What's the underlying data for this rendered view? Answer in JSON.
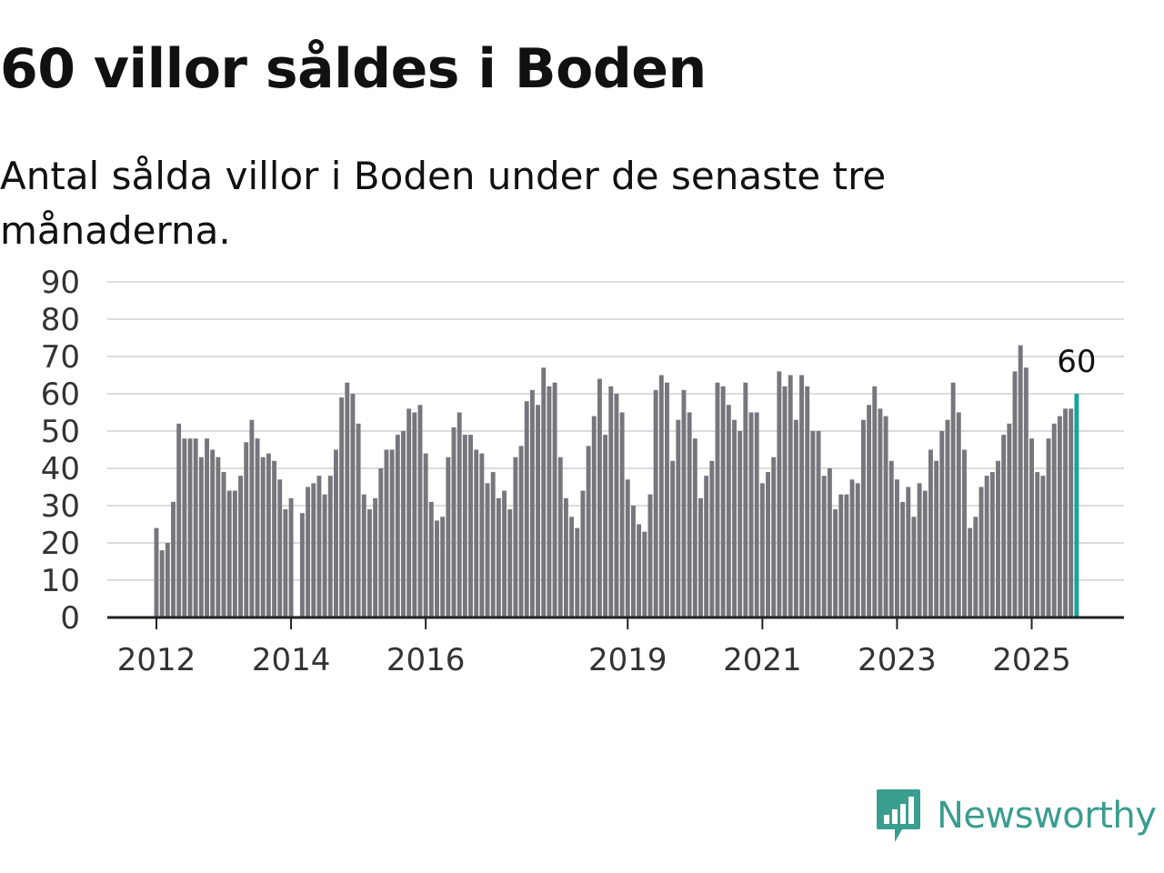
{
  "title": "60 villor såldes i Boden",
  "subtitle": "Antal sålda villor i Boden under de senaste tre månaderna.",
  "brand": {
    "name": "Newsworthy",
    "color": "#3a9e8f"
  },
  "chart_data": {
    "type": "bar",
    "ylim": [
      0,
      90
    ],
    "y_ticks": [
      0,
      10,
      20,
      30,
      40,
      50,
      60,
      70,
      80,
      90
    ],
    "x_tick_labels": [
      "2012",
      "2014",
      "2016",
      "2019",
      "2021",
      "2023",
      "2025"
    ],
    "grid": true,
    "bar_color": "#76767c",
    "highlight_color": "#1aa39a",
    "highlight_label": "60",
    "start": "2012-01",
    "series": [
      {
        "values": [
          24,
          18,
          20,
          31,
          52,
          48,
          48,
          48,
          43,
          48,
          45,
          43,
          39,
          34,
          34,
          38,
          47,
          53,
          48,
          43,
          44,
          42,
          37,
          29,
          32,
          0,
          28,
          35,
          36,
          38,
          33,
          38,
          45,
          59,
          63,
          60,
          52,
          33,
          29,
          32,
          40,
          45,
          45,
          49,
          50,
          56,
          55,
          57,
          44,
          31,
          26,
          27,
          43,
          51,
          55,
          49,
          49,
          45,
          44,
          36,
          39,
          32,
          34,
          29,
          43,
          46,
          58,
          61,
          57,
          67,
          62,
          63,
          43,
          32,
          27,
          24,
          34,
          46,
          54,
          64,
          49,
          62,
          60,
          55,
          37,
          30,
          25,
          23,
          33,
          61,
          65,
          63,
          42,
          53,
          61,
          55,
          48,
          32,
          38,
          42,
          63,
          62,
          57,
          53,
          50,
          63,
          55,
          55,
          36,
          39,
          43,
          66,
          62,
          65,
          53,
          65,
          62,
          50,
          50,
          38,
          40,
          29,
          33,
          33,
          37,
          36,
          53,
          57,
          62,
          56,
          54,
          42,
          37,
          31,
          35,
          27,
          36,
          34,
          45,
          42,
          50,
          53,
          63,
          55,
          45,
          24,
          27,
          35,
          38,
          39,
          42,
          49,
          52,
          66,
          73,
          67,
          48,
          39,
          38,
          48,
          52,
          54,
          56,
          56,
          60
        ]
      }
    ]
  }
}
